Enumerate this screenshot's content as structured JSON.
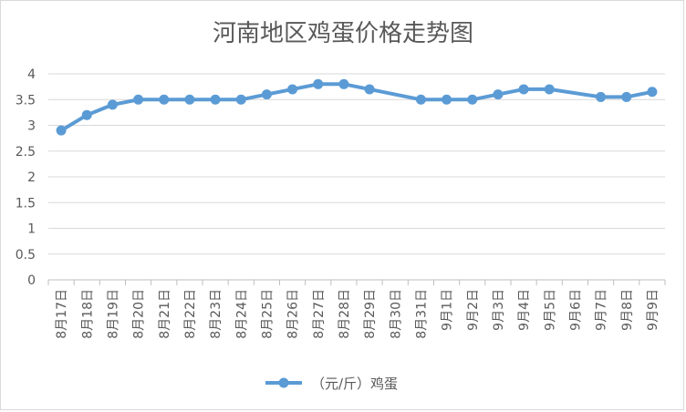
{
  "chart_data": {
    "type": "line",
    "title": "河南地区鸡蛋价格走势图",
    "xlabel": "",
    "ylabel": "",
    "ylim": [
      0,
      4
    ],
    "yticks": [
      "0",
      "0.5",
      "1",
      "1.5",
      "2",
      "2.5",
      "3",
      "3.5",
      "4"
    ],
    "grid": true,
    "legend_position": "bottom",
    "categories": [
      "8月17日",
      "8月18日",
      "8月19日",
      "8月20日",
      "8月21日",
      "8月22日",
      "8月23日",
      "8月24日",
      "8月25日",
      "8月26日",
      "8月27日",
      "8月28日",
      "8月29日",
      "8月30日",
      "8月31日",
      "9月1日",
      "9月2日",
      "9月3日",
      "9月4日",
      "9月5日",
      "9月6日",
      "9月7日",
      "9月8日",
      "9月9日"
    ],
    "series": [
      {
        "name": "（元/斤）鸡蛋",
        "color": "#5b9bd5",
        "values": [
          2.9,
          3.2,
          3.4,
          3.5,
          3.5,
          3.5,
          3.5,
          3.5,
          3.6,
          3.7,
          3.8,
          3.8,
          3.7,
          null,
          3.5,
          3.5,
          3.5,
          3.6,
          3.7,
          3.7,
          null,
          3.55,
          3.55,
          3.65
        ]
      }
    ]
  }
}
